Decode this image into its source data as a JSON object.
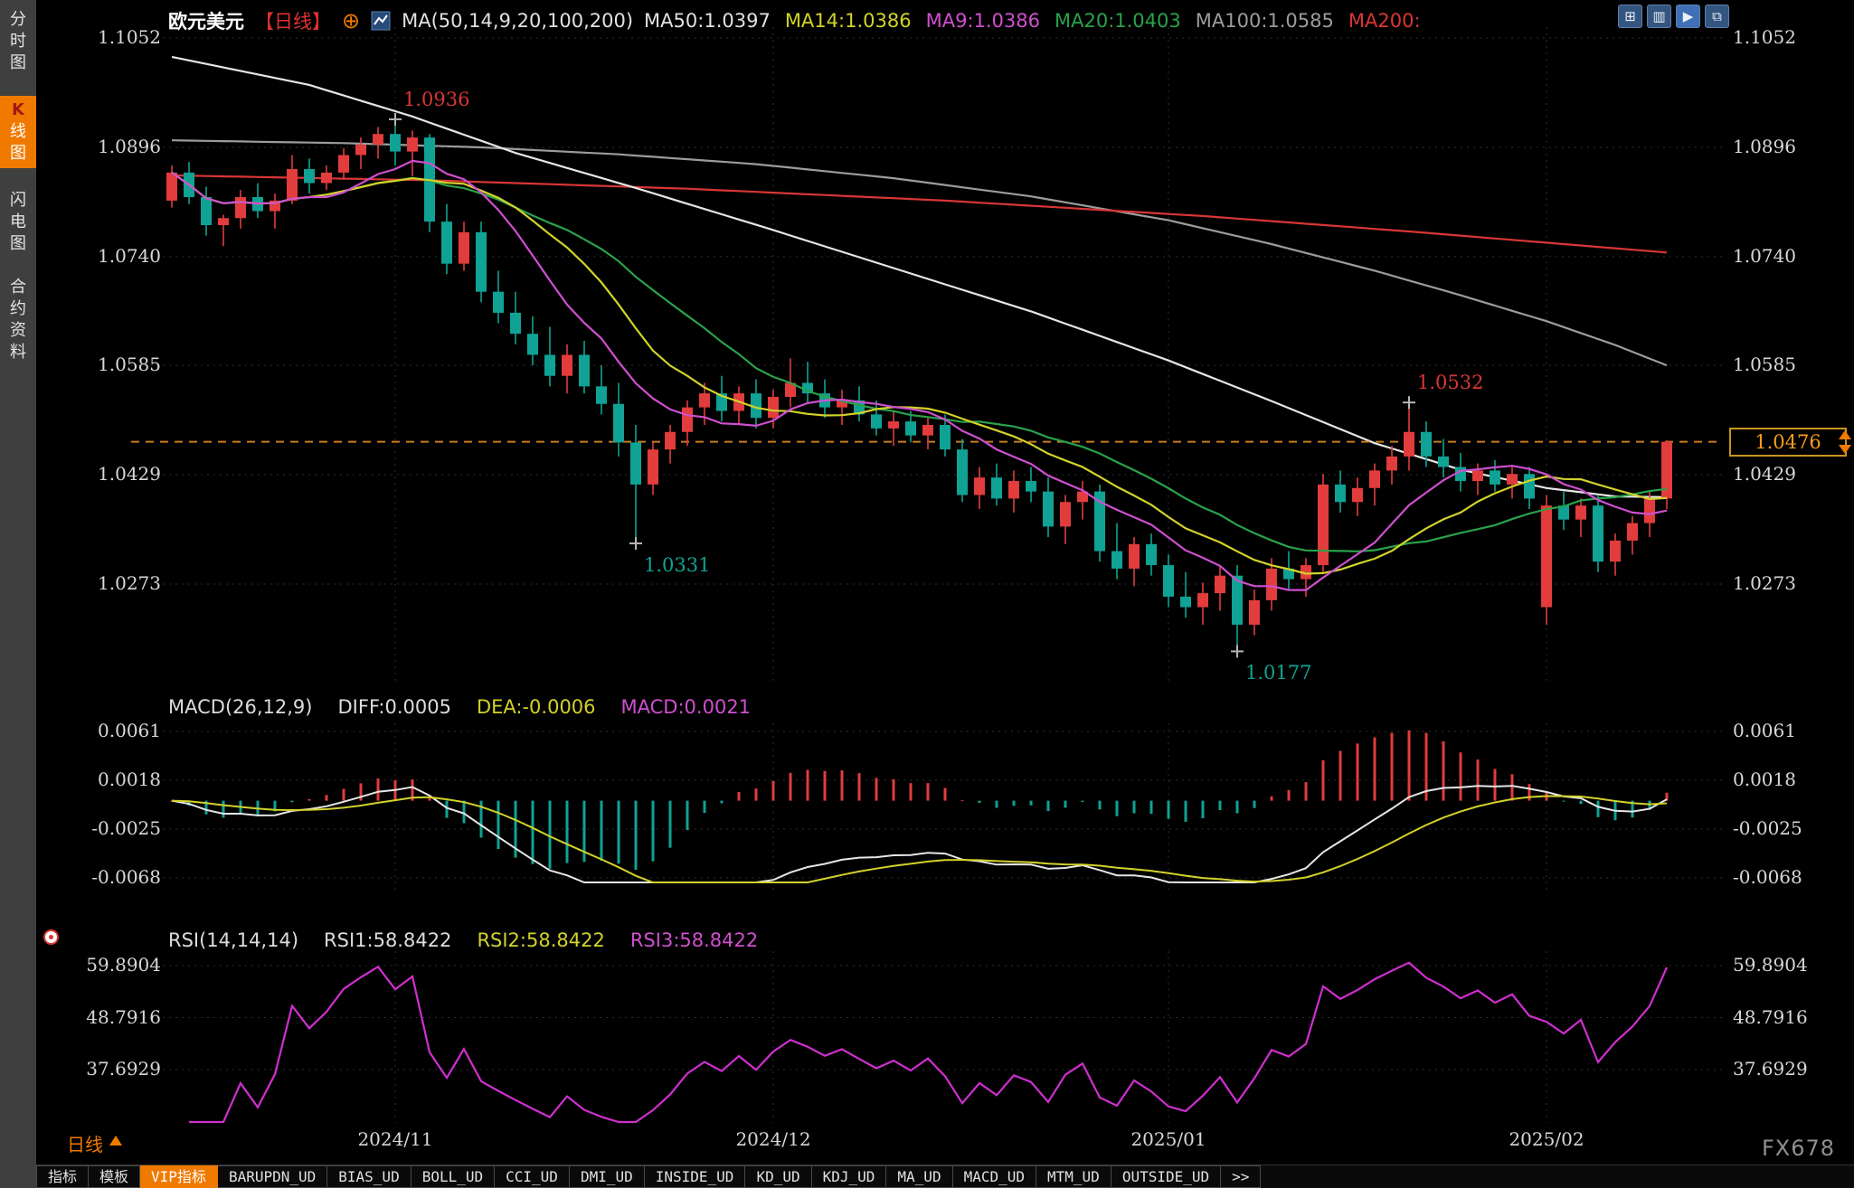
{
  "header": {
    "symbol": "欧元美元",
    "timeframe_tag": "【日线】",
    "ma_group_label": "MA(50,14,9,20,100,200)",
    "ma_values": [
      {
        "label": "MA50:1.0397",
        "color": "#e0e0e0"
      },
      {
        "label": "MA14:1.0386",
        "color": "#d2d22a"
      },
      {
        "label": "MA9:1.0386",
        "color": "#cf4fcf"
      },
      {
        "label": "MA20:1.0403",
        "color": "#29a24a"
      },
      {
        "label": "MA100:1.0585",
        "color": "#9c9c9c"
      },
      {
        "label": "MA200:",
        "color": "#d93636"
      }
    ]
  },
  "sidebar": {
    "items": [
      {
        "label": "分时图",
        "name": "sidebar-item-time-chart",
        "active": false
      },
      {
        "label": "K线图",
        "name": "sidebar-item-kline-chart",
        "active": true
      },
      {
        "label": "闪电图",
        "name": "sidebar-item-flash-chart",
        "active": false
      },
      {
        "label": "合约资料",
        "name": "sidebar-item-contract-info",
        "active": false
      }
    ]
  },
  "main_chart": {
    "y_axis_labels": [
      "1.1052",
      "1.0896",
      "1.0740",
      "1.0585",
      "1.0429",
      "1.0273"
    ],
    "y_axis_values": [
      1.1052,
      1.0896,
      1.074,
      1.0585,
      1.0429,
      1.0273
    ],
    "current_price": {
      "label": "1.0476",
      "value": 1.0476
    },
    "annotations": [
      {
        "text": "1.0936",
        "value": 1.0936,
        "index": 13,
        "color": "#d93636",
        "pos": "above"
      },
      {
        "text": "1.0331",
        "value": 1.0331,
        "index": 27,
        "color": "#10a294",
        "pos": "below"
      },
      {
        "text": "1.0532",
        "value": 1.0532,
        "index": 72,
        "color": "#d93636",
        "pos": "above"
      },
      {
        "text": "1.0177",
        "value": 1.0177,
        "index": 62,
        "color": "#10a294",
        "pos": "below"
      }
    ]
  },
  "macd": {
    "legend": {
      "title": "MACD(26,12,9)",
      "diff": "DIFF:0.0005",
      "dea": "DEA:-0.0006",
      "macd_val": "MACD:0.0021"
    },
    "axis_labels": [
      "0.0061",
      "0.0018",
      "-0.0025",
      "-0.0068"
    ],
    "axis_values": [
      0.0061,
      0.0018,
      -0.0025,
      -0.0068
    ]
  },
  "rsi": {
    "legend": {
      "title": "RSI(14,14,14)",
      "rsi1": "RSI1:58.8422",
      "rsi2": "RSI2:58.8422",
      "rsi3": "RSI3:58.8422"
    },
    "axis_labels": [
      "59.8904",
      "48.7916",
      "37.6929"
    ],
    "axis_values": [
      59.8904,
      48.7916,
      37.6929
    ]
  },
  "x_dates": {
    "labels": [
      "2024/11",
      "2024/12",
      "2025/01",
      "2025/02"
    ],
    "indices": [
      13,
      35,
      58,
      80
    ]
  },
  "period_label": "日线",
  "watermark": "FX678",
  "tabs": [
    {
      "label": "指标",
      "name": "tab-indicators",
      "active": false
    },
    {
      "label": "模板",
      "name": "tab-templates",
      "active": false
    },
    {
      "label": "VIP指标",
      "name": "tab-vip-indicators",
      "active": true
    },
    {
      "label": "BARUPDN_UD",
      "name": "tab-barupdn-ud",
      "active": false
    },
    {
      "label": "BIAS_UD",
      "name": "tab-bias-ud",
      "active": false
    },
    {
      "label": "BOLL_UD",
      "name": "tab-boll-ud",
      "active": false
    },
    {
      "label": "CCI_UD",
      "name": "tab-cci-ud",
      "active": false
    },
    {
      "label": "DMI_UD",
      "name": "tab-dmi-ud",
      "active": false
    },
    {
      "label": "INSIDE_UD",
      "name": "tab-inside-ud",
      "active": false
    },
    {
      "label": "KD_UD",
      "name": "tab-kd-ud",
      "active": false
    },
    {
      "label": "KDJ_UD",
      "name": "tab-kdj-ud",
      "active": false
    },
    {
      "label": "MA_UD",
      "name": "tab-ma-ud",
      "active": false
    },
    {
      "label": "MACD_UD",
      "name": "tab-macd-ud",
      "active": false
    },
    {
      "label": "MTM_UD",
      "name": "tab-mtm-ud",
      "active": false
    },
    {
      "label": "OUTSIDE_UD",
      "name": "tab-outside-ud",
      "active": false
    },
    {
      "label": ">>",
      "name": "tab-more",
      "active": false
    }
  ],
  "chart_data": {
    "type": "candlestick",
    "title": "欧元美元 日线 (EUR/USD daily)",
    "x_labels": [
      "2024/11",
      "2024/12",
      "2025/01",
      "2025/02"
    ],
    "y_range": [
      1.0177,
      1.1052
    ],
    "last_price": 1.0476,
    "candles": [
      [
        1.082,
        1.087,
        1.081,
        1.086
      ],
      [
        1.086,
        1.0875,
        1.0815,
        1.0825
      ],
      [
        1.0825,
        1.084,
        1.077,
        1.0785
      ],
      [
        1.0785,
        1.08,
        1.0755,
        1.0795
      ],
      [
        1.0795,
        1.0835,
        1.078,
        1.0825
      ],
      [
        1.0825,
        1.0845,
        1.0795,
        1.0805
      ],
      [
        1.0805,
        1.083,
        1.078,
        1.082
      ],
      [
        1.082,
        1.0885,
        1.0815,
        1.0865
      ],
      [
        1.0865,
        1.088,
        1.083,
        1.0845
      ],
      [
        1.0845,
        1.087,
        1.0835,
        1.086
      ],
      [
        1.086,
        1.0895,
        1.085,
        1.0885
      ],
      [
        1.0885,
        1.091,
        1.0865,
        1.09
      ],
      [
        1.09,
        1.0925,
        1.088,
        1.0915
      ],
      [
        1.0915,
        1.0936,
        1.087,
        1.089
      ],
      [
        1.089,
        1.092,
        1.0855,
        1.091
      ],
      [
        1.091,
        1.0915,
        1.0775,
        1.079
      ],
      [
        1.079,
        1.0815,
        1.0715,
        1.073
      ],
      [
        1.073,
        1.079,
        1.072,
        1.0775
      ],
      [
        1.0775,
        1.079,
        1.0675,
        1.069
      ],
      [
        1.069,
        1.072,
        1.0645,
        1.066
      ],
      [
        1.066,
        1.069,
        1.0615,
        1.063
      ],
      [
        1.063,
        1.0655,
        1.0585,
        1.06
      ],
      [
        1.06,
        1.064,
        1.0555,
        1.057
      ],
      [
        1.057,
        1.0615,
        1.0545,
        1.06
      ],
      [
        1.06,
        1.062,
        1.0545,
        1.0555
      ],
      [
        1.0555,
        1.0585,
        1.0515,
        1.053
      ],
      [
        1.053,
        1.056,
        1.0455,
        1.0475
      ],
      [
        1.0475,
        1.05,
        1.0331,
        1.0415
      ],
      [
        1.0415,
        1.0475,
        1.04,
        1.0465
      ],
      [
        1.0465,
        1.05,
        1.0445,
        1.049
      ],
      [
        1.049,
        1.0535,
        1.047,
        1.0525
      ],
      [
        1.0525,
        1.056,
        1.05,
        1.0545
      ],
      [
        1.0545,
        1.057,
        1.0505,
        1.052
      ],
      [
        1.052,
        1.0555,
        1.05,
        1.0545
      ],
      [
        1.0545,
        1.0565,
        1.0495,
        1.051
      ],
      [
        1.051,
        1.055,
        1.0495,
        1.054
      ],
      [
        1.054,
        1.0595,
        1.0525,
        1.056
      ],
      [
        1.056,
        1.059,
        1.053,
        1.0545
      ],
      [
        1.0545,
        1.0565,
        1.051,
        1.0525
      ],
      [
        1.0525,
        1.055,
        1.05,
        1.0535
      ],
      [
        1.0535,
        1.0555,
        1.0505,
        1.0515
      ],
      [
        1.0515,
        1.0535,
        1.0485,
        1.0495
      ],
      [
        1.0495,
        1.052,
        1.047,
        1.0505
      ],
      [
        1.0505,
        1.052,
        1.0475,
        1.0485
      ],
      [
        1.0485,
        1.051,
        1.0465,
        1.05
      ],
      [
        1.05,
        1.0515,
        1.0455,
        1.0465
      ],
      [
        1.0465,
        1.048,
        1.039,
        1.04
      ],
      [
        1.04,
        1.044,
        1.038,
        1.0425
      ],
      [
        1.0425,
        1.0445,
        1.0385,
        1.0395
      ],
      [
        1.0395,
        1.0435,
        1.0375,
        1.042
      ],
      [
        1.042,
        1.044,
        1.039,
        1.0405
      ],
      [
        1.0405,
        1.0425,
        1.034,
        1.0355
      ],
      [
        1.0355,
        1.04,
        1.033,
        1.039
      ],
      [
        1.039,
        1.042,
        1.0365,
        1.0405
      ],
      [
        1.0405,
        1.0415,
        1.0305,
        1.032
      ],
      [
        1.032,
        1.036,
        1.028,
        1.0295
      ],
      [
        1.0295,
        1.034,
        1.027,
        1.033
      ],
      [
        1.033,
        1.0345,
        1.0285,
        1.03
      ],
      [
        1.03,
        1.0315,
        1.024,
        1.0255
      ],
      [
        1.0255,
        1.029,
        1.0225,
        1.024
      ],
      [
        1.024,
        1.0275,
        1.0215,
        1.026
      ],
      [
        1.026,
        1.03,
        1.0235,
        1.0285
      ],
      [
        1.0285,
        1.03,
        1.0177,
        1.0215
      ],
      [
        1.0215,
        1.0265,
        1.02,
        1.025
      ],
      [
        1.025,
        1.031,
        1.0235,
        1.0295
      ],
      [
        1.0295,
        1.032,
        1.0265,
        1.028
      ],
      [
        1.028,
        1.031,
        1.0255,
        1.03
      ],
      [
        1.03,
        1.043,
        1.029,
        1.0415
      ],
      [
        1.0415,
        1.0435,
        1.0375,
        1.039
      ],
      [
        1.039,
        1.0425,
        1.037,
        1.041
      ],
      [
        1.041,
        1.0445,
        1.0385,
        1.0435
      ],
      [
        1.0435,
        1.047,
        1.0415,
        1.0455
      ],
      [
        1.0455,
        1.0532,
        1.0435,
        1.049
      ],
      [
        1.049,
        1.0505,
        1.044,
        1.0455
      ],
      [
        1.0455,
        1.048,
        1.0425,
        1.044
      ],
      [
        1.044,
        1.046,
        1.0405,
        1.042
      ],
      [
        1.042,
        1.0445,
        1.04,
        1.0435
      ],
      [
        1.0435,
        1.045,
        1.0405,
        1.0415
      ],
      [
        1.0415,
        1.044,
        1.0395,
        1.043
      ],
      [
        1.043,
        1.044,
        1.038,
        1.0395
      ],
      [
        1.024,
        1.04,
        1.0215,
        1.0385
      ],
      [
        1.0385,
        1.0405,
        1.035,
        1.0365
      ],
      [
        1.0365,
        1.0395,
        1.034,
        1.0385
      ],
      [
        1.0385,
        1.04,
        1.029,
        1.0305
      ],
      [
        1.0305,
        1.0345,
        1.0285,
        1.0335
      ],
      [
        1.0335,
        1.037,
        1.0315,
        1.036
      ],
      [
        1.036,
        1.0405,
        1.034,
        1.0395
      ],
      [
        1.0395,
        1.0478,
        1.038,
        1.0476
      ]
    ],
    "overlays": {
      "ma50_points": [
        [
          0,
          1.1025
        ],
        [
          8,
          1.0985
        ],
        [
          14,
          1.094
        ],
        [
          20,
          1.0888
        ],
        [
          27,
          1.0838
        ],
        [
          35,
          1.0778
        ],
        [
          43,
          1.0716
        ],
        [
          50,
          1.0662
        ],
        [
          58,
          1.0592
        ],
        [
          64,
          1.0534
        ],
        [
          70,
          1.0474
        ],
        [
          75,
          1.0436
        ],
        [
          80,
          1.041
        ],
        [
          84,
          1.0398
        ],
        [
          87,
          1.0397
        ]
      ],
      "ma100_points": [
        [
          0,
          1.0906
        ],
        [
          10,
          1.0902
        ],
        [
          18,
          1.0896
        ],
        [
          26,
          1.0886
        ],
        [
          34,
          1.0872
        ],
        [
          42,
          1.0852
        ],
        [
          50,
          1.0826
        ],
        [
          58,
          1.0792
        ],
        [
          64,
          1.0758
        ],
        [
          70,
          1.072
        ],
        [
          75,
          1.0685
        ],
        [
          80,
          1.0648
        ],
        [
          84,
          1.0614
        ],
        [
          87,
          1.0585
        ]
      ],
      "ma200_points": [
        [
          0,
          1.0856
        ],
        [
          15,
          1.0849
        ],
        [
          30,
          1.0837
        ],
        [
          45,
          1.082
        ],
        [
          60,
          1.0798
        ],
        [
          72,
          1.0776
        ],
        [
          80,
          1.076
        ],
        [
          87,
          1.0746
        ]
      ]
    },
    "colors": {
      "up": "#e23c3c",
      "down": "#10a294",
      "ma9": "#cf4fcf",
      "ma14": "#d2d22a",
      "ma20": "#29a24a",
      "ma50": "#e6e6e6",
      "ma100": "#9c9c9c",
      "ma200": "#d93636",
      "diff": "#e6e6e6",
      "dea": "#d2d22a",
      "rsi": "#cf2fcf",
      "accent_orange": "#f07a00",
      "price_line": "#c87d1e"
    }
  }
}
